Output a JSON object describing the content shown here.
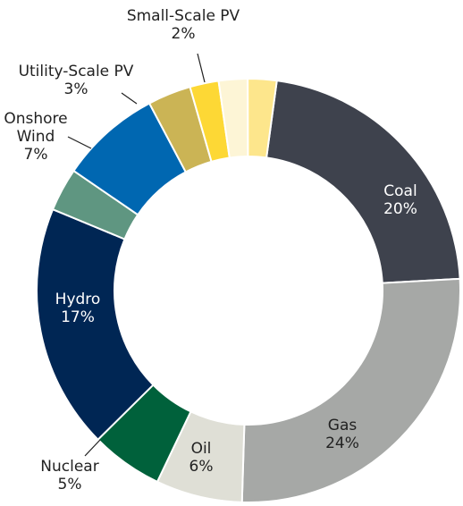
{
  "chart_data": {
    "type": "donut",
    "categories": [
      "Coal",
      "Gas",
      "Oil",
      "Nuclear",
      "Hydro",
      null,
      "Onshore Wind",
      "Utility-Scale PV",
      "Small-Scale PV",
      null,
      null
    ],
    "values": [
      20,
      24,
      6,
      5,
      17,
      3,
      7,
      3,
      2,
      2,
      2
    ],
    "value_labels": [
      "20%",
      "24%",
      "6%",
      "5%",
      "17%",
      null,
      "7%",
      "3%",
      "2%",
      null,
      null
    ],
    "colors": [
      "#3e424d",
      "#a6a8a6",
      "#dfdfd6",
      "#00613b",
      "#002654",
      "#5f9681",
      "#0067b1",
      "#cbb455",
      "#fdd835",
      "#fdf5d6",
      "#fde68c"
    ]
  }
}
